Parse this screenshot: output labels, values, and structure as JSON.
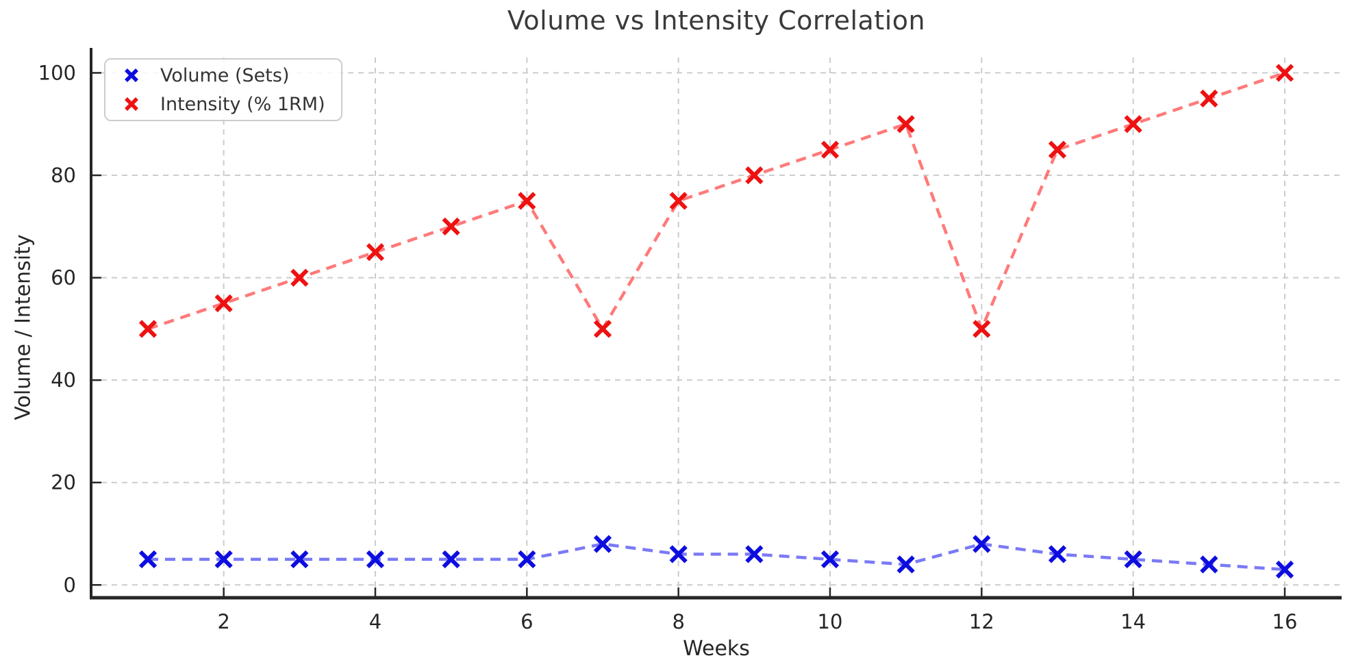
{
  "chart_data": {
    "type": "line",
    "title": "Volume vs Intensity Correlation",
    "xlabel": "Weeks",
    "ylabel": "Volume / Intensity",
    "x": [
      1,
      2,
      3,
      4,
      5,
      6,
      7,
      8,
      9,
      10,
      11,
      12,
      13,
      14,
      15,
      16
    ],
    "series": [
      {
        "name": "Volume (Sets)",
        "marker": "x",
        "marker_color": "#0d0de0",
        "line_color": "rgba(40,40,240,0.62)",
        "values": [
          5,
          5,
          5,
          5,
          5,
          5,
          8,
          6,
          6,
          5,
          4,
          8,
          6,
          5,
          4,
          3
        ]
      },
      {
        "name": "Intensity (% 1RM)",
        "marker": "x",
        "marker_color": "#ee1111",
        "line_color": "rgba(255,40,40,0.62)",
        "values": [
          50,
          55,
          60,
          65,
          70,
          75,
          50,
          75,
          80,
          85,
          90,
          50,
          85,
          90,
          95,
          100
        ]
      }
    ],
    "x_ticks": [
      2,
      4,
      6,
      8,
      10,
      12,
      14,
      16
    ],
    "y_ticks": [
      0,
      20,
      40,
      60,
      80,
      100
    ],
    "xlim": [
      0.25,
      16.75
    ],
    "ylim": [
      -2.5,
      103
    ],
    "grid": true,
    "grid_style": "dashed",
    "line_style": "dashed",
    "legend_position": "upper-left"
  },
  "colors": {
    "background": "#ffffff",
    "grid": "#cccccc",
    "spine": "#262626",
    "tick_label": "#262626",
    "title": "#3a3a3a"
  }
}
